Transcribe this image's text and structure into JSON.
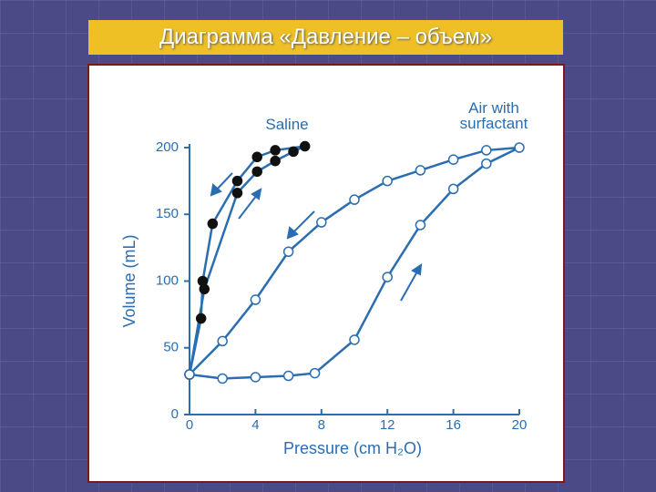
{
  "title": "Диаграмма «Давление – объем»",
  "chart_data": {
    "type": "line",
    "x_label": "Pressure (cm H₂O)",
    "y_label": "Volume (mL)",
    "xlim": [
      0,
      20
    ],
    "ylim": [
      0,
      200
    ],
    "xticks": [
      0,
      4,
      8,
      12,
      16,
      20
    ],
    "yticks": [
      0,
      50,
      100,
      150,
      200
    ],
    "series": [
      {
        "name": "Saline",
        "color": "#2a6db0",
        "marker_fill": "#111111",
        "x": [
          0,
          0.9,
          2.9,
          4.1,
          5.2,
          6.3,
          7,
          5.2,
          4.1,
          2.9,
          1.4,
          0.8,
          0.7,
          0
        ],
        "values": [
          30,
          94,
          166,
          182,
          190,
          197,
          201,
          198,
          193,
          175,
          143,
          100,
          72,
          30
        ]
      },
      {
        "name": "Air with surfactant",
        "color": "#2a6db0",
        "marker_fill": "#ffffff",
        "x": [
          0,
          2,
          4,
          6,
          7.6,
          10,
          12,
          14,
          16,
          18,
          20,
          18,
          16,
          14,
          12,
          10,
          8,
          6,
          4,
          2,
          0
        ],
        "values": [
          30,
          27,
          28,
          29,
          31,
          56,
          103,
          142,
          169,
          188,
          200,
          198,
          191,
          183,
          175,
          161,
          144,
          122,
          86,
          55,
          30
        ]
      }
    ]
  }
}
